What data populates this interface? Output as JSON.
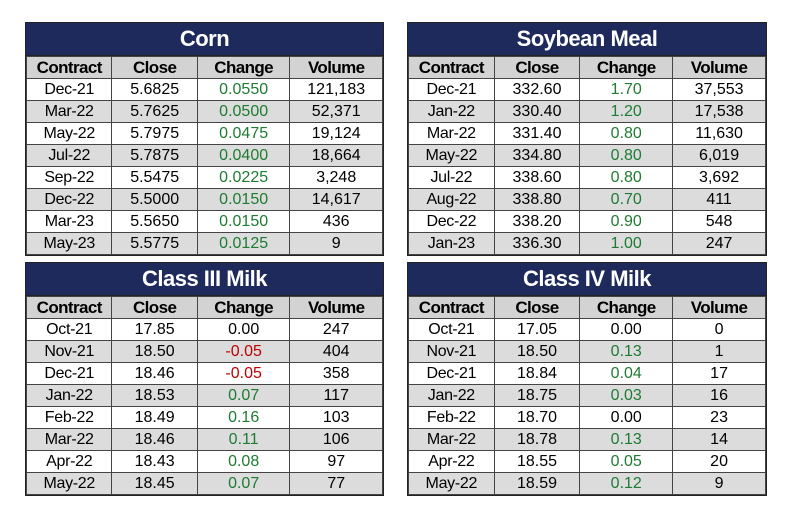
{
  "tables": [
    {
      "title": "Corn",
      "headers": [
        "Contract",
        "Close",
        "Change",
        "Volume"
      ],
      "rows": [
        {
          "contract": "Dec-21",
          "close": "5.6825",
          "change": "0.0550",
          "volume": "121,183",
          "dir": "pos"
        },
        {
          "contract": "Mar-22",
          "close": "5.7625",
          "change": "0.0500",
          "volume": "52,371",
          "dir": "pos"
        },
        {
          "contract": "May-22",
          "close": "5.7975",
          "change": "0.0475",
          "volume": "19,124",
          "dir": "pos"
        },
        {
          "contract": "Jul-22",
          "close": "5.7875",
          "change": "0.0400",
          "volume": "18,664",
          "dir": "pos"
        },
        {
          "contract": "Sep-22",
          "close": "5.5475",
          "change": "0.0225",
          "volume": "3,248",
          "dir": "pos"
        },
        {
          "contract": "Dec-22",
          "close": "5.5000",
          "change": "0.0150",
          "volume": "14,617",
          "dir": "pos"
        },
        {
          "contract": "Mar-23",
          "close": "5.5650",
          "change": "0.0150",
          "volume": "436",
          "dir": "pos"
        },
        {
          "contract": "May-23",
          "close": "5.5775",
          "change": "0.0125",
          "volume": "9",
          "dir": "pos"
        }
      ]
    },
    {
      "title": "Soybean Meal",
      "headers": [
        "Contract",
        "Close",
        "Change",
        "Volume"
      ],
      "rows": [
        {
          "contract": "Dec-21",
          "close": "332.60",
          "change": "1.70",
          "volume": "37,553",
          "dir": "pos"
        },
        {
          "contract": "Jan-22",
          "close": "330.40",
          "change": "1.20",
          "volume": "17,538",
          "dir": "pos"
        },
        {
          "contract": "Mar-22",
          "close": "331.40",
          "change": "0.80",
          "volume": "11,630",
          "dir": "pos"
        },
        {
          "contract": "May-22",
          "close": "334.80",
          "change": "0.80",
          "volume": "6,019",
          "dir": "pos"
        },
        {
          "contract": "Jul-22",
          "close": "338.60",
          "change": "0.80",
          "volume": "3,692",
          "dir": "pos"
        },
        {
          "contract": "Aug-22",
          "close": "338.80",
          "change": "0.70",
          "volume": "411",
          "dir": "pos"
        },
        {
          "contract": "Dec-22",
          "close": "338.20",
          "change": "0.90",
          "volume": "548",
          "dir": "pos"
        },
        {
          "contract": "Jan-23",
          "close": "336.30",
          "change": "1.00",
          "volume": "247",
          "dir": "pos"
        }
      ]
    },
    {
      "title": "Class III Milk",
      "headers": [
        "Contract",
        "Close",
        "Change",
        "Volume"
      ],
      "rows": [
        {
          "contract": "Oct-21",
          "close": "17.85",
          "change": "0.00",
          "volume": "247",
          "dir": "zero"
        },
        {
          "contract": "Nov-21",
          "close": "18.50",
          "change": "-0.05",
          "volume": "404",
          "dir": "neg"
        },
        {
          "contract": "Dec-21",
          "close": "18.46",
          "change": "-0.05",
          "volume": "358",
          "dir": "neg"
        },
        {
          "contract": "Jan-22",
          "close": "18.53",
          "change": "0.07",
          "volume": "117",
          "dir": "pos"
        },
        {
          "contract": "Feb-22",
          "close": "18.49",
          "change": "0.16",
          "volume": "103",
          "dir": "pos"
        },
        {
          "contract": "Mar-22",
          "close": "18.46",
          "change": "0.11",
          "volume": "106",
          "dir": "pos"
        },
        {
          "contract": "Apr-22",
          "close": "18.43",
          "change": "0.08",
          "volume": "97",
          "dir": "pos"
        },
        {
          "contract": "May-22",
          "close": "18.45",
          "change": "0.07",
          "volume": "77",
          "dir": "pos"
        }
      ]
    },
    {
      "title": "Class IV Milk",
      "headers": [
        "Contract",
        "Close",
        "Change",
        "Volume"
      ],
      "rows": [
        {
          "contract": "Oct-21",
          "close": "17.05",
          "change": "0.00",
          "volume": "0",
          "dir": "zero"
        },
        {
          "contract": "Nov-21",
          "close": "18.50",
          "change": "0.13",
          "volume": "1",
          "dir": "pos"
        },
        {
          "contract": "Dec-21",
          "close": "18.84",
          "change": "0.04",
          "volume": "17",
          "dir": "pos"
        },
        {
          "contract": "Jan-22",
          "close": "18.75",
          "change": "0.03",
          "volume": "16",
          "dir": "pos"
        },
        {
          "contract": "Feb-22",
          "close": "18.70",
          "change": "0.00",
          "volume": "23",
          "dir": "zero"
        },
        {
          "contract": "Mar-22",
          "close": "18.78",
          "change": "0.13",
          "volume": "14",
          "dir": "pos"
        },
        {
          "contract": "Apr-22",
          "close": "18.55",
          "change": "0.05",
          "volume": "20",
          "dir": "pos"
        },
        {
          "contract": "May-22",
          "close": "18.59",
          "change": "0.12",
          "volume": "9",
          "dir": "pos"
        }
      ]
    }
  ],
  "colors": {
    "title_bg": "#1f2a5c",
    "header_bg": "#d3d3d3",
    "stripe_bg": "#dcdcdc",
    "positive": "#1e7b32",
    "negative": "#c00000"
  }
}
